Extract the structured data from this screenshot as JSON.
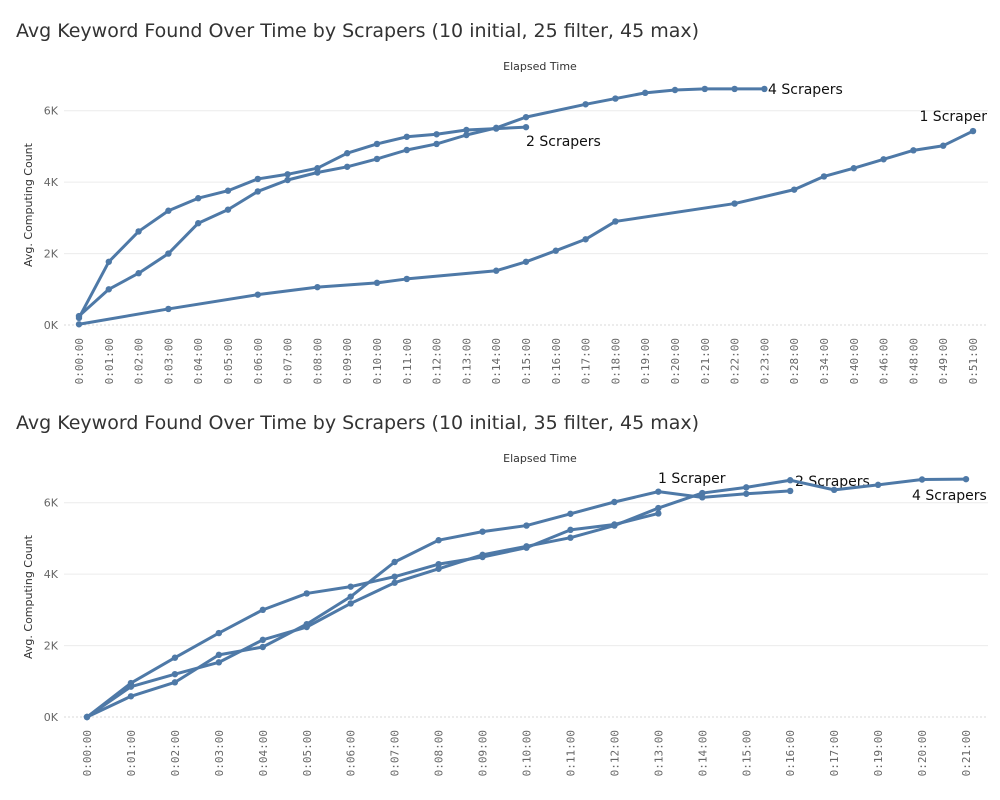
{
  "chart_data": [
    {
      "type": "line",
      "title": "Avg Keyword Found Over Time by Scrapers (10 initial, 25 filter, 45 max)",
      "xlabel": "Elapsed Time",
      "ylabel": "Avg. Computing Count",
      "ylim": [
        0,
        7000
      ],
      "y_ticks": [
        0,
        2000,
        4000,
        6000
      ],
      "y_tick_labels": [
        "0K",
        "2K",
        "4K",
        "6K"
      ],
      "grid": true,
      "categories": [
        "0:00:00",
        "0:01:00",
        "0:02:00",
        "0:03:00",
        "0:04:00",
        "0:05:00",
        "0:06:00",
        "0:07:00",
        "0:08:00",
        "0:09:00",
        "0:10:00",
        "0:11:00",
        "0:12:00",
        "0:13:00",
        "0:14:00",
        "0:15:00",
        "0:16:00",
        "0:17:00",
        "0:18:00",
        "0:19:00",
        "0:20:00",
        "0:21:00",
        "0:22:00",
        "0:23:00",
        "0:28:00",
        "0:34:00",
        "0:40:00",
        "0:46:00",
        "0:48:00",
        "0:49:00",
        "0:51:00"
      ],
      "series": [
        {
          "name": "4 Scrapers",
          "x": [
            "0:00:00",
            "0:01:00",
            "0:02:00",
            "0:03:00",
            "0:04:00",
            "0:05:00",
            "0:06:00",
            "0:07:00",
            "0:08:00",
            "0:09:00",
            "0:10:00",
            "0:11:00",
            "0:12:00",
            "0:13:00",
            "0:14:00",
            "0:15:00",
            "0:17:00",
            "0:18:00",
            "0:19:00",
            "0:20:00",
            "0:21:00",
            "0:22:00",
            "0:23:00"
          ],
          "values": [
            250,
            1000,
            1450,
            2000,
            2850,
            3230,
            3740,
            4060,
            4270,
            4430,
            4650,
            4900,
            5070,
            5320,
            5520,
            5820,
            6180,
            6340,
            6500,
            6580,
            6610,
            6610,
            6610
          ]
        },
        {
          "name": "2 Scrapers",
          "x": [
            "0:00:00",
            "0:01:00",
            "0:02:00",
            "0:03:00",
            "0:04:00",
            "0:05:00",
            "0:06:00",
            "0:07:00",
            "0:08:00",
            "0:09:00",
            "0:10:00",
            "0:11:00",
            "0:12:00",
            "0:13:00",
            "0:14:00",
            "0:15:00"
          ],
          "values": [
            200,
            1770,
            2620,
            3200,
            3550,
            3760,
            4090,
            4220,
            4390,
            4810,
            5070,
            5270,
            5340,
            5460,
            5500,
            5540
          ]
        },
        {
          "name": "1 Scraper",
          "x": [
            "0:00:00",
            "0:03:00",
            "0:06:00",
            "0:08:00",
            "0:10:00",
            "0:11:00",
            "0:14:00",
            "0:15:00",
            "0:16:00",
            "0:17:00",
            "0:18:00",
            "0:22:00",
            "0:28:00",
            "0:34:00",
            "0:40:00",
            "0:46:00",
            "0:48:00",
            "0:49:00",
            "0:51:00"
          ],
          "values": [
            20,
            450,
            850,
            1060,
            1180,
            1290,
            1520,
            1770,
            2080,
            2400,
            2900,
            3400,
            3790,
            4160,
            4390,
            4640,
            4890,
            5020,
            5430
          ]
        }
      ]
    },
    {
      "type": "line",
      "title": "Avg Keyword Found Over Time by Scrapers (10 initial, 35 filter, 45 max)",
      "xlabel": "Elapsed Time",
      "ylabel": "Avg. Computing Count",
      "ylim": [
        0,
        7000
      ],
      "y_ticks": [
        0,
        2000,
        4000,
        6000
      ],
      "y_tick_labels": [
        "0K",
        "2K",
        "4K",
        "6K"
      ],
      "grid": true,
      "categories": [
        "0:00:00",
        "0:01:00",
        "0:02:00",
        "0:03:00",
        "0:04:00",
        "0:05:00",
        "0:06:00",
        "0:07:00",
        "0:08:00",
        "0:09:00",
        "0:10:00",
        "0:11:00",
        "0:12:00",
        "0:13:00",
        "0:14:00",
        "0:15:00",
        "0:16:00",
        "0:17:00",
        "0:19:00",
        "0:20:00",
        "0:21:00"
      ],
      "series": [
        {
          "name": "1 Scraper",
          "x": [
            "0:00:00",
            "0:01:00",
            "0:02:00",
            "0:03:00",
            "0:04:00",
            "0:05:00",
            "0:06:00",
            "0:07:00",
            "0:08:00",
            "0:09:00",
            "0:10:00",
            "0:11:00",
            "0:12:00",
            "0:13:00"
          ],
          "values": [
            0,
            950,
            1660,
            2350,
            3000,
            3460,
            3650,
            3930,
            4280,
            4480,
            4740,
            5240,
            5390,
            5700
          ]
        },
        {
          "name": "2 Scrapers",
          "x": [
            "0:00:00",
            "0:01:00",
            "0:02:00",
            "0:03:00",
            "0:04:00",
            "0:05:00",
            "0:06:00",
            "0:07:00",
            "0:08:00",
            "0:09:00",
            "0:10:00",
            "0:11:00",
            "0:12:00",
            "0:13:00",
            "0:14:00",
            "0:15:00",
            "0:16:00"
          ],
          "values": [
            0,
            580,
            970,
            1740,
            1960,
            2600,
            3370,
            4340,
            4950,
            5190,
            5360,
            5690,
            6020,
            6310,
            6150,
            6250,
            6330
          ]
        },
        {
          "name": "4 Scrapers",
          "x": [
            "0:00:00",
            "0:01:00",
            "0:02:00",
            "0:03:00",
            "0:04:00",
            "0:05:00",
            "0:06:00",
            "0:07:00",
            "0:08:00",
            "0:09:00",
            "0:10:00",
            "0:11:00",
            "0:12:00",
            "0:13:00",
            "0:14:00",
            "0:15:00",
            "0:16:00",
            "0:17:00",
            "0:19:00",
            "0:20:00",
            "0:21:00"
          ],
          "values": [
            0,
            850,
            1200,
            1530,
            2160,
            2520,
            3180,
            3760,
            4150,
            4540,
            4780,
            5020,
            5360,
            5850,
            6270,
            6430,
            6630,
            6360,
            6500,
            6650,
            6660
          ]
        }
      ]
    }
  ]
}
